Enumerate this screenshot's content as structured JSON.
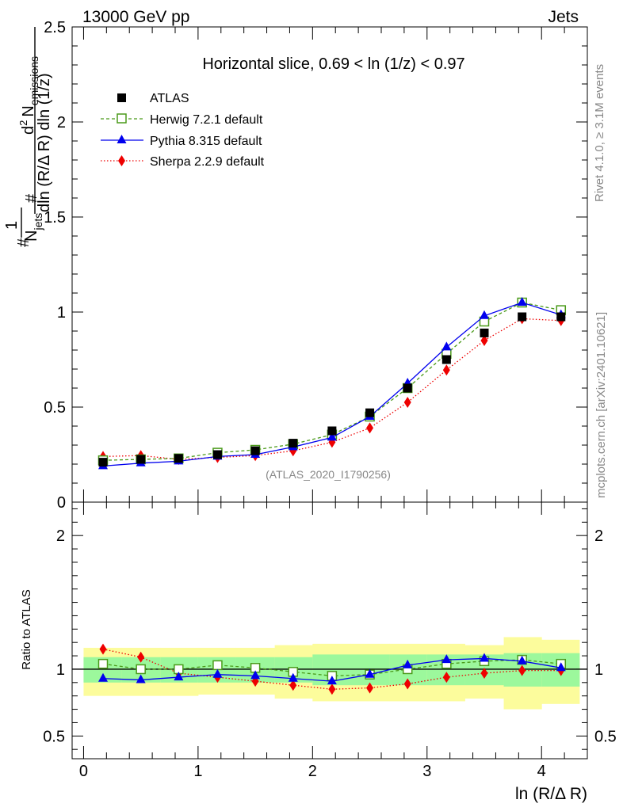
{
  "header": {
    "left": "13000 GeV pp",
    "right": "Jets"
  },
  "side_labels": {
    "rivet": "Rivet 4.1.0, ≥ 3.1M events",
    "mcplots": "mcplots.cern.ch [arXiv:2401.10621]"
  },
  "colors": {
    "atlas": "#000000",
    "herwig": "#4a9a1a",
    "pythia": "#0000ee",
    "sherpa": "#ee0000",
    "band_inner": "#9cf89c",
    "band_outer": "#fcfc9c"
  },
  "chart_data": [
    {
      "type": "scatter",
      "title": "Horizontal slice, 0.69 < ln (1/z) < 0.97",
      "annotation": "(ATLAS_2020_I1790256)",
      "ylabel": {
        "frac_num": "1",
        "frac_den": "N",
        "den_sub": "jets",
        "d2": "d",
        "d2_sup": "2",
        "numerator": "N",
        "num_sub": "emissions",
        "denominator": "dln (R/Δ R) dln (1/z)",
        "hash": "#"
      },
      "xlim": [
        -0.1,
        4.4
      ],
      "ylim": [
        0,
        2.5
      ],
      "yticks": [
        0,
        0.5,
        1,
        1.5,
        2,
        2.5
      ],
      "yticklabels": [
        "0",
        "0.5",
        "1",
        "1.5",
        "2",
        "2.5"
      ],
      "x": [
        0.17,
        0.5,
        0.83,
        1.17,
        1.5,
        1.83,
        2.17,
        2.5,
        2.83,
        3.17,
        3.5,
        3.83,
        4.17
      ],
      "series": [
        {
          "name": "ATLAS",
          "values": [
            0.21,
            0.225,
            0.23,
            0.25,
            0.27,
            0.31,
            0.375,
            0.47,
            0.6,
            0.75,
            0.89,
            0.975,
            0.975
          ]
        },
        {
          "name": "Herwig 7.2.1 default",
          "values": [
            0.22,
            0.225,
            0.23,
            0.26,
            0.275,
            0.305,
            0.355,
            0.45,
            0.6,
            0.78,
            0.95,
            1.05,
            1.01
          ]
        },
        {
          "name": "Pythia 8.315 default",
          "values": [
            0.19,
            0.205,
            0.215,
            0.24,
            0.25,
            0.29,
            0.34,
            0.45,
            0.625,
            0.815,
            0.98,
            1.05,
            0.985
          ]
        },
        {
          "name": "Sherpa 2.2.9 default",
          "values": [
            0.24,
            0.245,
            0.225,
            0.235,
            0.245,
            0.27,
            0.315,
            0.39,
            0.525,
            0.695,
            0.85,
            0.965,
            0.955
          ]
        }
      ]
    },
    {
      "type": "scatter",
      "ylabel": "Ratio to ATLAS",
      "xlabel": "ln (R/Δ R)",
      "xlim": [
        -0.1,
        4.4
      ],
      "ylim": [
        0.33,
        2.25
      ],
      "yticks": [
        0.5,
        1,
        2
      ],
      "yticklabels": [
        "0.5",
        "1",
        "2"
      ],
      "xticks": [
        0,
        1,
        2,
        3,
        4
      ],
      "xticklabels": [
        "0",
        "1",
        "2",
        "3",
        "4"
      ],
      "bins": [
        [
          0.0,
          0.33
        ],
        [
          0.33,
          0.67
        ],
        [
          0.67,
          1.0
        ],
        [
          1.0,
          1.33
        ],
        [
          1.33,
          1.67
        ],
        [
          1.67,
          2.0
        ],
        [
          2.0,
          2.33
        ],
        [
          2.33,
          2.67
        ],
        [
          2.67,
          3.0
        ],
        [
          3.0,
          3.33
        ],
        [
          3.33,
          3.67
        ],
        [
          3.67,
          4.0
        ],
        [
          4.0,
          4.33
        ]
      ],
      "band_inner": [
        [
          0.9,
          1.09
        ],
        [
          0.9,
          1.09
        ],
        [
          0.9,
          1.09
        ],
        [
          0.9,
          1.09
        ],
        [
          0.9,
          1.09
        ],
        [
          0.9,
          1.09
        ],
        [
          0.88,
          1.11
        ],
        [
          0.88,
          1.11
        ],
        [
          0.88,
          1.11
        ],
        [
          0.88,
          1.11
        ],
        [
          0.88,
          1.11
        ],
        [
          0.87,
          1.12
        ],
        [
          0.87,
          1.12
        ]
      ],
      "band_outer": [
        [
          0.8,
          1.16
        ],
        [
          0.8,
          1.16
        ],
        [
          0.8,
          1.16
        ],
        [
          0.81,
          1.16
        ],
        [
          0.81,
          1.16
        ],
        [
          0.78,
          1.18
        ],
        [
          0.76,
          1.19
        ],
        [
          0.76,
          1.19
        ],
        [
          0.76,
          1.19
        ],
        [
          0.76,
          1.19
        ],
        [
          0.78,
          1.18
        ],
        [
          0.7,
          1.24
        ],
        [
          0.74,
          1.22
        ]
      ],
      "x": [
        0.17,
        0.5,
        0.83,
        1.17,
        1.5,
        1.83,
        2.17,
        2.5,
        2.83,
        3.17,
        3.5,
        3.83,
        4.17
      ],
      "series": [
        {
          "name": "Herwig 7.2.1 default",
          "values": [
            1.04,
            1.0,
            1.0,
            1.03,
            1.01,
            0.98,
            0.95,
            0.96,
            1.0,
            1.04,
            1.06,
            1.07,
            1.04
          ]
        },
        {
          "name": "Pythia 8.315 default",
          "values": [
            0.93,
            0.92,
            0.94,
            0.96,
            0.95,
            0.93,
            0.91,
            0.96,
            1.03,
            1.07,
            1.08,
            1.06,
            1.01
          ]
        },
        {
          "name": "Sherpa 2.2.9 default",
          "values": [
            1.15,
            1.09,
            0.97,
            0.94,
            0.91,
            0.88,
            0.85,
            0.86,
            0.89,
            0.94,
            0.97,
            0.99,
            0.99
          ]
        }
      ]
    }
  ]
}
